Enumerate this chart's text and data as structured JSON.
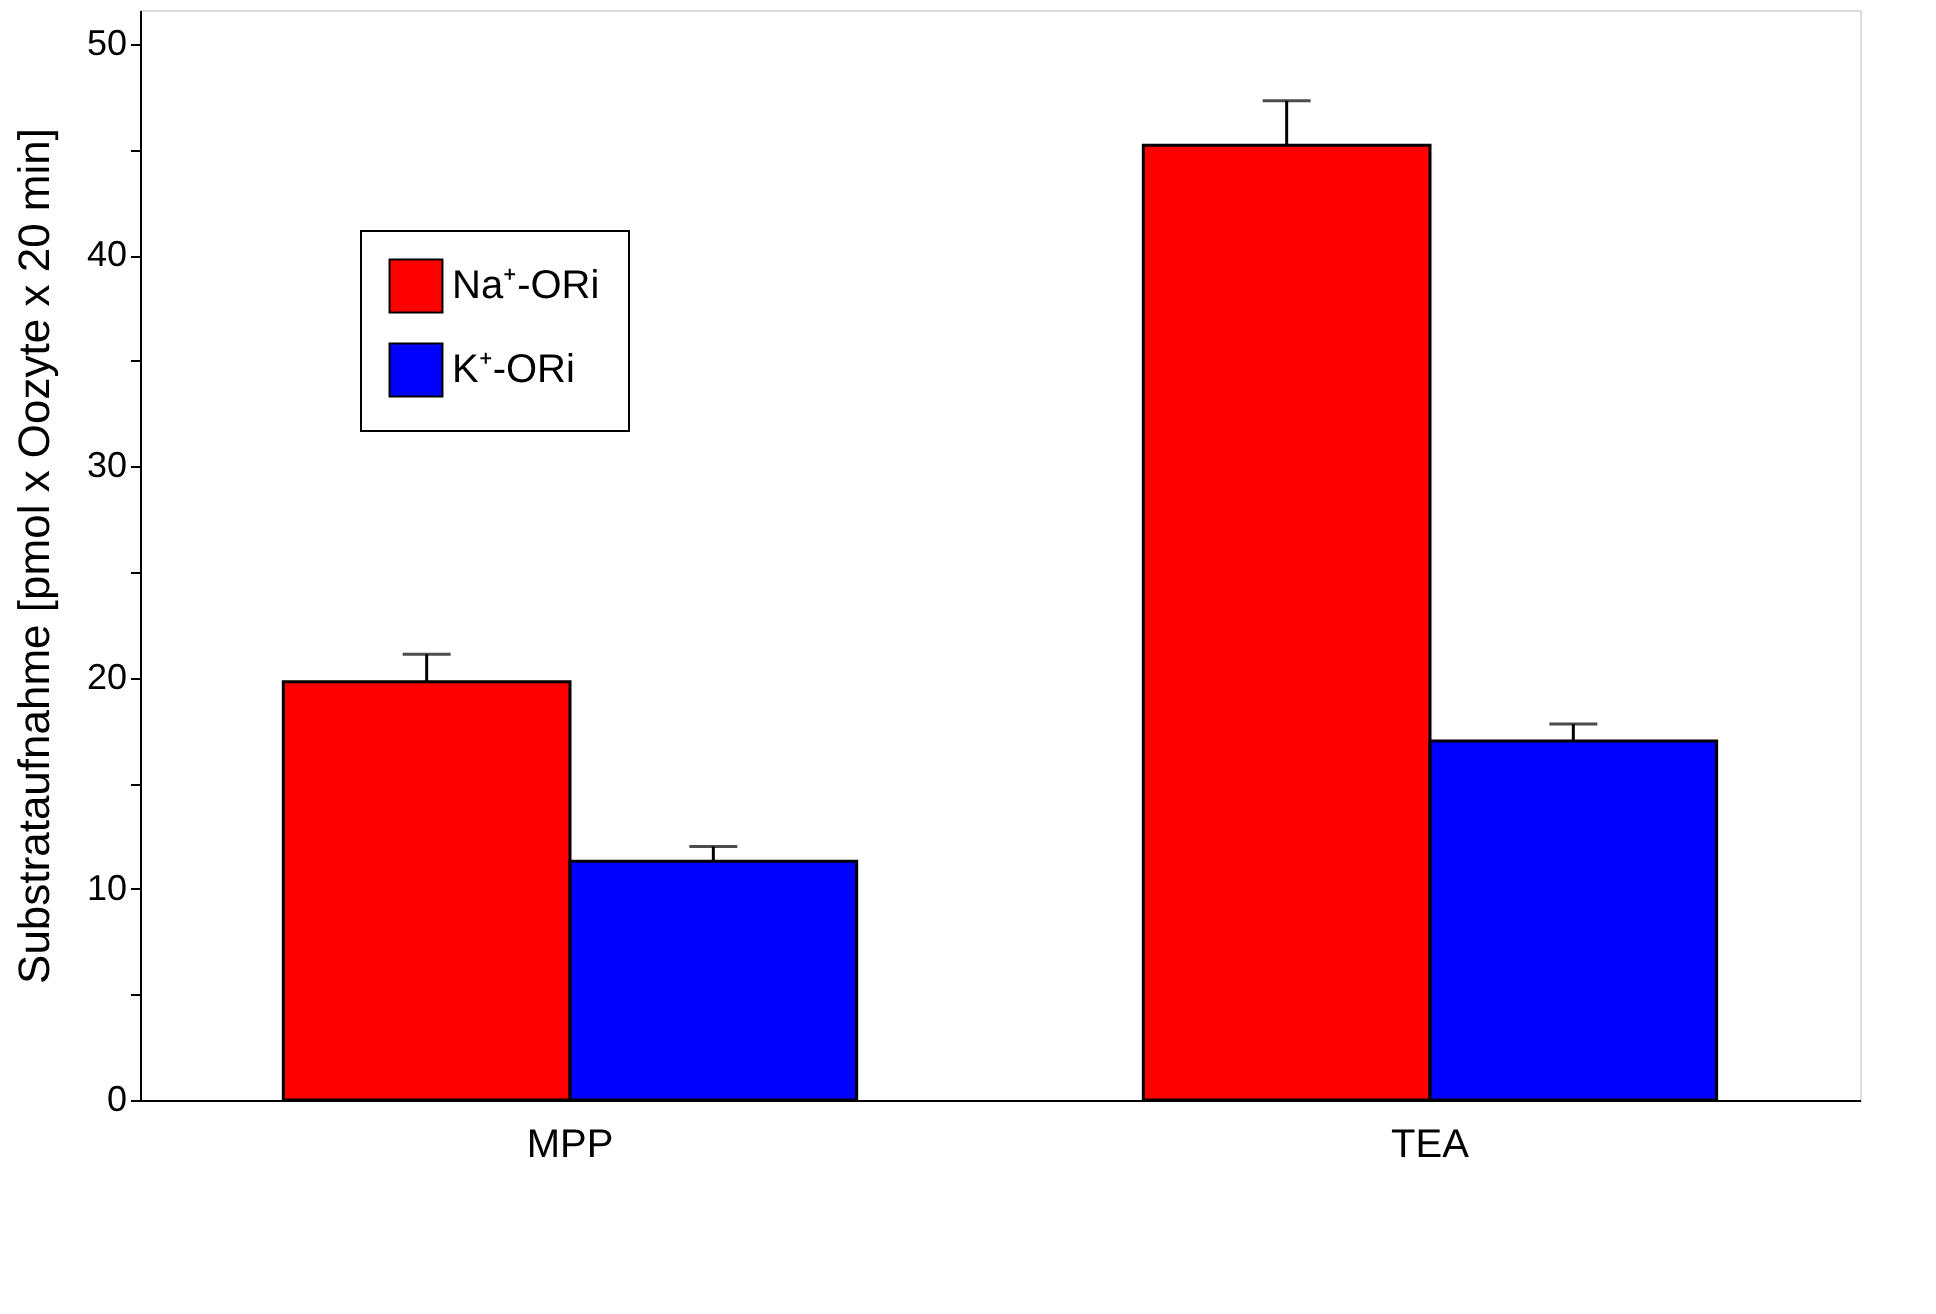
{
  "chart_data": {
    "type": "bar",
    "ylabel": "Substrataufnahme [pmol x Oozyte x 20 min]",
    "categories": [
      "MPP",
      "TEA"
    ],
    "series": [
      {
        "name": "Na⁺-ORi",
        "color": "#ff0000",
        "values": [
          19.8,
          45.2
        ],
        "errors": [
          [
            19.8,
            21.1
          ],
          [
            45.2,
            47.3
          ]
        ]
      },
      {
        "name": "K⁺-ORi",
        "color": "#0000ff",
        "values": [
          11.3,
          17.0
        ],
        "errors": [
          [
            11.3,
            12.0
          ],
          [
            17.0,
            17.8
          ]
        ]
      }
    ],
    "ylim": [
      0,
      51.6
    ],
    "yticks": [
      0,
      {
        "value": 5,
        "label": null
      },
      10,
      {
        "value": 15,
        "label": null
      },
      20,
      {
        "value": 25,
        "label": null
      },
      30,
      {
        "value": 35,
        "label": null
      },
      40,
      {
        "value": 45,
        "label": null
      },
      50
    ],
    "legend": "top left",
    "grid": false
  }
}
